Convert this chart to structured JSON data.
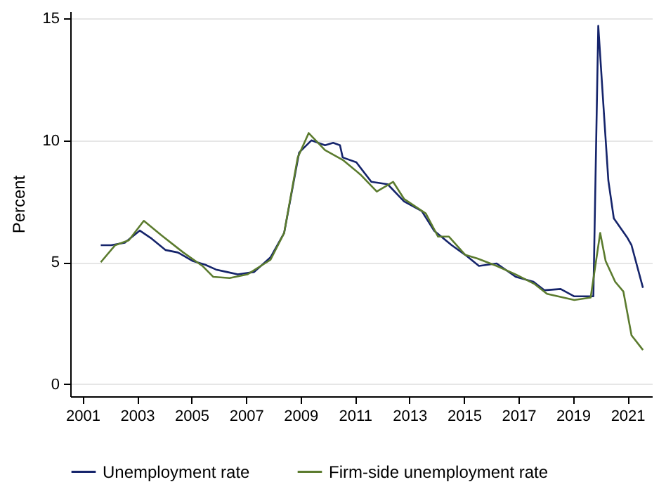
{
  "chart_data": {
    "type": "line",
    "ylabel": "Percent",
    "xlim": [
      2000.55,
      2021.9
    ],
    "ylim": [
      -0.5,
      15.3
    ],
    "xticks": [
      2001,
      2003,
      2005,
      2007,
      2009,
      2011,
      2013,
      2015,
      2017,
      2019,
      2021
    ],
    "yticks": [
      0,
      5,
      10,
      15
    ],
    "grid": "y",
    "legend": "bottom",
    "line_style": "solid",
    "marker": "none",
    "series": [
      {
        "name": "Unemployment rate",
        "color": "#15246b",
        "x": [
          2001.67,
          2002.05,
          2002.55,
          2003.1,
          2003.5,
          2004.05,
          2004.5,
          2005.05,
          2005.5,
          2005.9,
          2006.3,
          2006.7,
          2007.3,
          2007.9,
          2008.4,
          2008.95,
          2009.4,
          2009.9,
          2010.2,
          2010.45,
          2010.55,
          2011.05,
          2011.6,
          2012.2,
          2012.8,
          2013.45,
          2013.9,
          2014.55,
          2015.05,
          2015.55,
          2016.2,
          2016.9,
          2017.55,
          2017.95,
          2018.55,
          2019.05,
          2019.55,
          2019.75,
          2019.93,
          2020.15,
          2020.3,
          2020.5,
          2021.0,
          2021.15,
          2021.57
        ],
        "values": [
          5.7,
          5.7,
          5.8,
          6.3,
          6.0,
          5.5,
          5.4,
          5.05,
          4.9,
          4.7,
          4.6,
          4.5,
          4.6,
          5.2,
          6.2,
          9.5,
          10.0,
          9.8,
          9.9,
          9.8,
          9.3,
          9.1,
          8.3,
          8.2,
          7.5,
          7.1,
          6.3,
          5.7,
          5.3,
          4.85,
          4.95,
          4.4,
          4.2,
          3.85,
          3.9,
          3.6,
          3.6,
          3.6,
          14.7,
          10.9,
          8.35,
          6.8,
          6.0,
          5.7,
          3.95
        ]
      },
      {
        "name": "Firm-side unemployment rate",
        "color": "#5b7b2e",
        "x": [
          2001.67,
          2002.2,
          2002.7,
          2003.25,
          2003.9,
          2004.7,
          2005.4,
          2005.8,
          2006.4,
          2007.05,
          2007.9,
          2008.4,
          2008.9,
          2009.3,
          2009.9,
          2010.55,
          2011.2,
          2011.8,
          2012.4,
          2012.8,
          2013.6,
          2014.05,
          2014.45,
          2015.05,
          2015.5,
          2016.2,
          2016.9,
          2017.6,
          2018.05,
          2019.05,
          2019.65,
          2020.0,
          2020.2,
          2020.55,
          2020.85,
          2021.15,
          2021.57
        ],
        "values": [
          5.0,
          5.7,
          5.9,
          6.7,
          6.1,
          5.4,
          4.85,
          4.4,
          4.35,
          4.5,
          5.1,
          6.2,
          9.3,
          10.3,
          9.6,
          9.2,
          8.6,
          7.9,
          8.3,
          7.6,
          7.0,
          6.05,
          6.05,
          5.3,
          5.15,
          4.85,
          4.5,
          4.1,
          3.7,
          3.45,
          3.55,
          6.2,
          5.05,
          4.2,
          3.8,
          2.0,
          1.4
        ]
      }
    ]
  }
}
